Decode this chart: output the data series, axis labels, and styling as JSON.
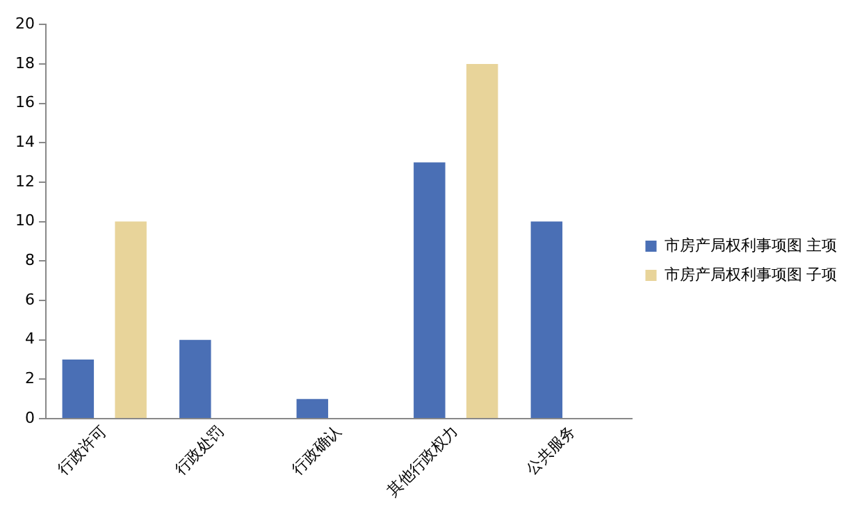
{
  "chart_data": {
    "type": "bar",
    "categories": [
      "行政许可",
      "行政处罚",
      "行政确认",
      "其他行政权力",
      "公共服务"
    ],
    "series": [
      {
        "name": "市房产局权利事项图 主项",
        "color": "#4a6fb5",
        "values": [
          3,
          4,
          1,
          13,
          10
        ]
      },
      {
        "name": "市房产局权利事项图 子项",
        "color": "#e8d49a",
        "values": [
          10,
          null,
          null,
          18,
          null
        ]
      }
    ],
    "ylim": [
      0,
      20
    ],
    "yticks": [
      0,
      2,
      4,
      6,
      8,
      10,
      12,
      14,
      16,
      18,
      20
    ],
    "grid": false,
    "legend": "right"
  }
}
